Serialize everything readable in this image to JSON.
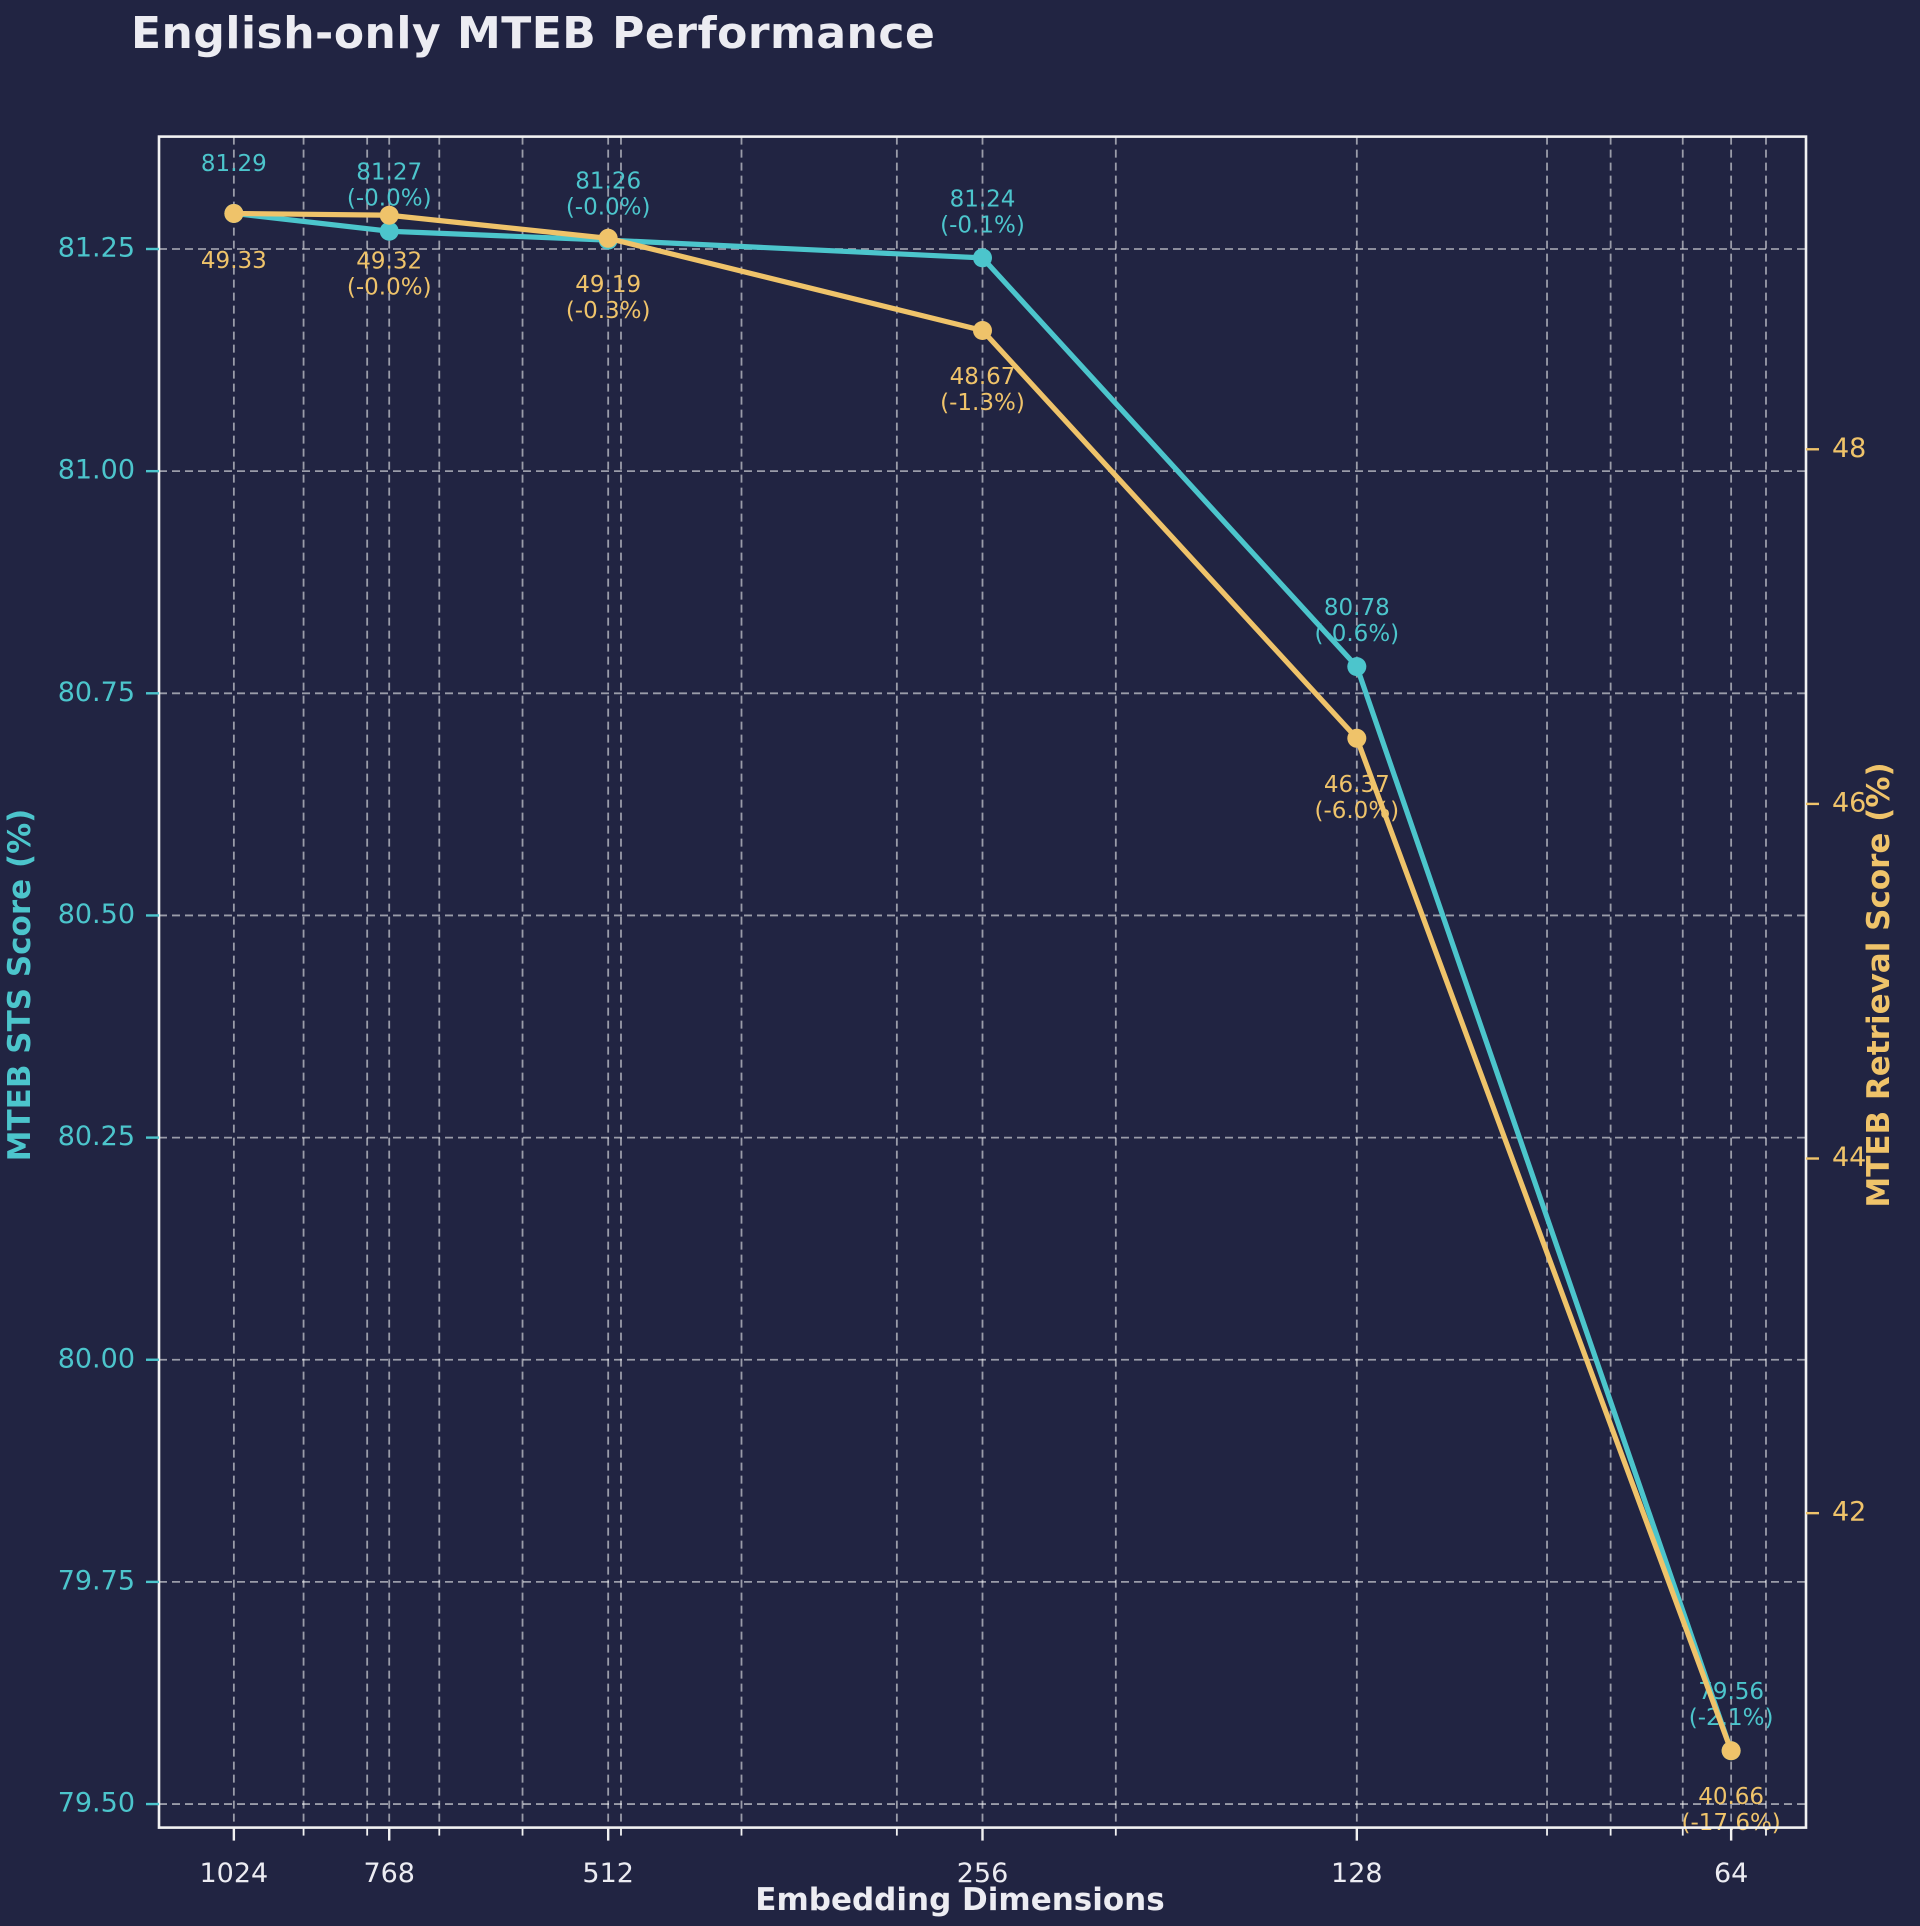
{
  "chart_data": {
    "type": "line",
    "title": "English-only MTEB Performance",
    "xlabel": "Embedding Dimensions",
    "ylabel_left": "MTEB STS Score (%)",
    "ylabel_right": "MTEB Retrieval Score (%)",
    "background_color": "#212442",
    "spine_color": "#f2f2f2",
    "grid_color": "rgba(255,255,255,0.55)",
    "text_color": "#ececf2",
    "legend": "none",
    "grid": "on",
    "x_axis": {
      "scale": "log2-inverted",
      "log2_range": [
        5.8,
        10.2
      ],
      "major_ticks": [
        1024,
        768,
        512,
        256,
        128,
        64
      ],
      "major_tick_labels": [
        "1024",
        "768",
        "512",
        "256",
        "128",
        "64"
      ],
      "minor_gridlines": [
        900,
        800,
        700,
        600,
        500,
        400,
        300,
        200,
        90,
        80,
        70,
        60
      ],
      "tick_color": "#f2f2f2"
    },
    "left_axis": {
      "range": [
        79.4735,
        81.3765
      ],
      "ticks": [
        81.25,
        81.0,
        80.75,
        80.5,
        80.25,
        80.0,
        79.75,
        79.5
      ],
      "tick_labels": [
        "81.25",
        "81.00",
        "80.75",
        "80.50",
        "80.25",
        "80.00",
        "79.75",
        "79.50"
      ],
      "color": "#4cc5cc"
    },
    "right_axis": {
      "range": [
        40.2265,
        49.7635
      ],
      "ticks": [
        48,
        46,
        44,
        42
      ],
      "tick_labels": [
        "48",
        "46",
        "44",
        "42"
      ],
      "color": "#efc36a"
    },
    "series": [
      {
        "name": "MTEB STS Score (%)",
        "axis": "left",
        "color": "#4cc5cc",
        "label_side": "above",
        "points": [
          {
            "x": 1024,
            "y": 81.29,
            "label": [
              "81.29"
            ]
          },
          {
            "x": 768,
            "y": 81.27,
            "label": [
              "81.27",
              "(-0.0%)"
            ]
          },
          {
            "x": 512,
            "y": 81.26,
            "label": [
              "81.26",
              "(-0.0%)"
            ]
          },
          {
            "x": 256,
            "y": 81.24,
            "label": [
              "81.24",
              "(-0.1%)"
            ]
          },
          {
            "x": 128,
            "y": 80.78,
            "label": [
              "80.78",
              "(-0.6%)"
            ]
          },
          {
            "x": 64,
            "y": 79.56,
            "label": [
              "79.56",
              "(-2.1%)"
            ]
          }
        ]
      },
      {
        "name": "MTEB Retrieval Score (%)",
        "axis": "right",
        "color": "#efc36a",
        "label_side": "below",
        "points": [
          {
            "x": 1024,
            "y": 49.33,
            "label": [
              "49.33"
            ]
          },
          {
            "x": 768,
            "y": 49.32,
            "label": [
              "49.32",
              "(-0.0%)"
            ]
          },
          {
            "x": 512,
            "y": 49.19,
            "label": [
              "49.19",
              "(-0.3%)"
            ]
          },
          {
            "x": 256,
            "y": 48.67,
            "label": [
              "48.67",
              "(-1.3%)"
            ]
          },
          {
            "x": 128,
            "y": 46.37,
            "label": [
              "46.37",
              "(-6.0%)"
            ]
          },
          {
            "x": 64,
            "y": 40.66,
            "label": [
              "40.66",
              "(-17.6%)"
            ]
          }
        ]
      }
    ]
  }
}
